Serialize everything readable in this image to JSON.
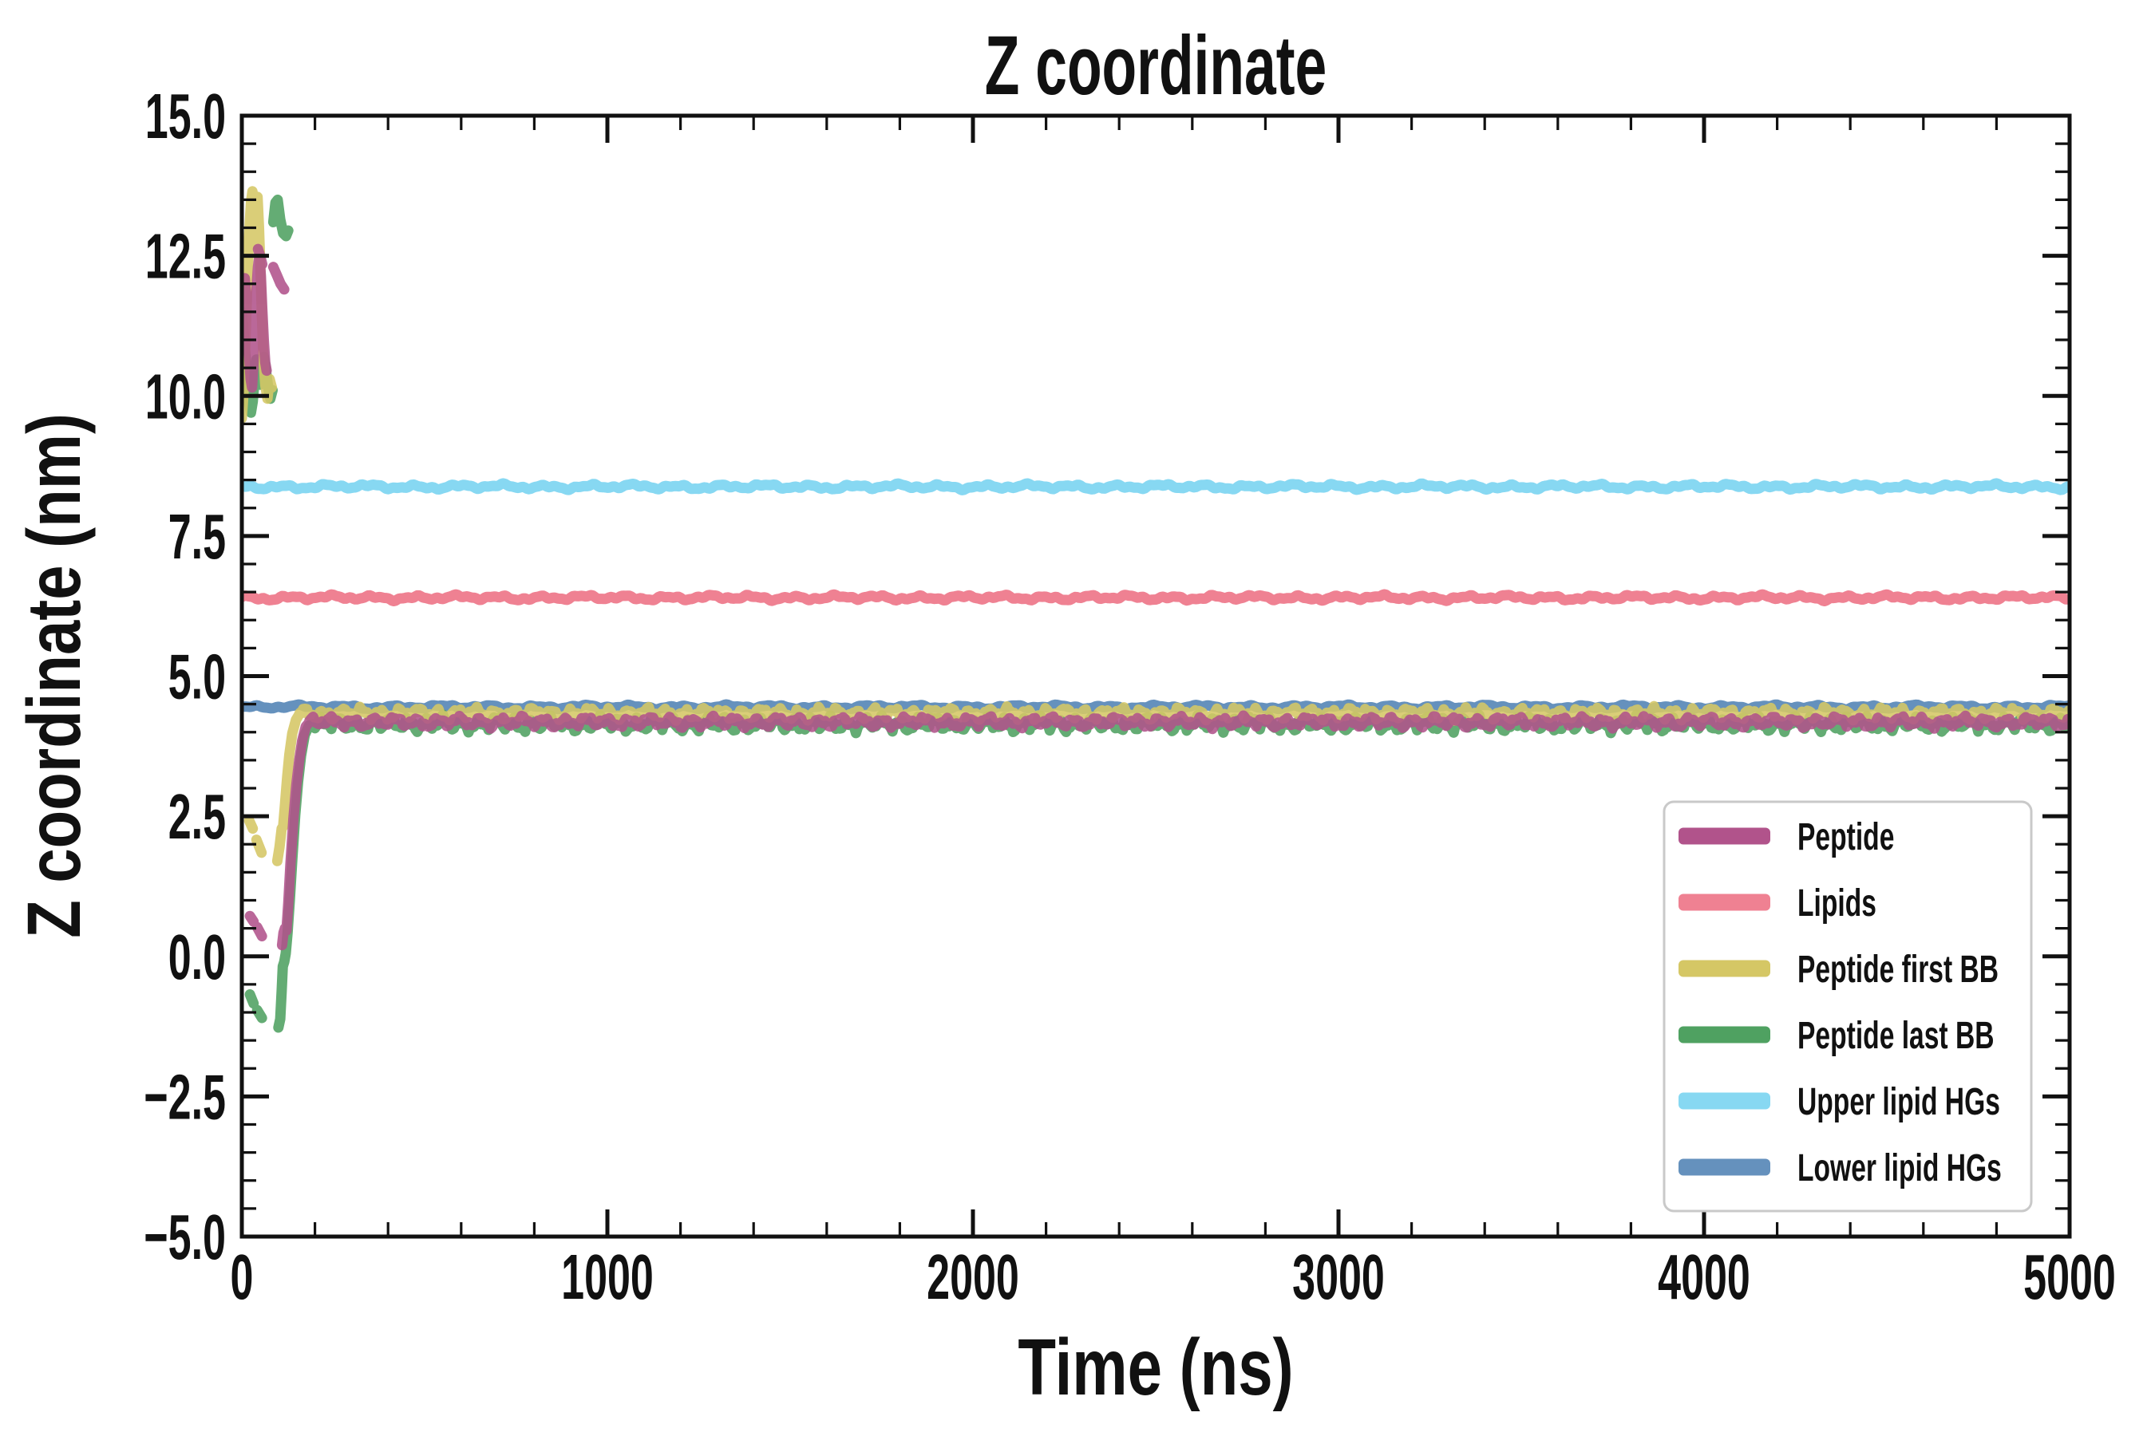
{
  "figure": {
    "background": "#ffffff"
  },
  "chart_data": {
    "type": "line",
    "title": "Z coordinate",
    "xlabel": "Time (ns)",
    "ylabel": "Z coordinate (nm)",
    "xlim": [
      0,
      5000
    ],
    "ylim": [
      -5.0,
      15.0
    ],
    "grid": false,
    "background": "#ffffff",
    "axis_color": "#111111",
    "x_major_ticks": [
      0,
      1000,
      2000,
      3000,
      4000,
      5000
    ],
    "x_minor_step": 200,
    "y_major_ticks": [
      -5.0,
      -2.5,
      0.0,
      2.5,
      5.0,
      7.5,
      10.0,
      12.5,
      15.0
    ],
    "y_minor_step": 0.5,
    "legend": {
      "position": "lower right",
      "border_color": "#c9c9c9",
      "background": "#ffffff",
      "labels": [
        "Peptide",
        "Lipids",
        "Peptide first BB",
        "Peptide last BB",
        "Upper lipid HGs",
        "Lower lipid HGs"
      ]
    },
    "draw_order": [
      4,
      1,
      5,
      3,
      2,
      0
    ],
    "series": [
      {
        "name": "Peptide",
        "color": "#b1538b",
        "alpha": 0.88,
        "baseline": 4.18,
        "noise_amp": 0.1,
        "wiggle": 58,
        "settle_start": 185,
        "pre_segments": [
          [
            [
              0,
              11.15
            ],
            [
              4,
              11.7
            ],
            [
              8,
              12.1
            ],
            [
              12,
              11.8
            ],
            [
              16,
              11.2
            ],
            [
              20,
              10.7
            ],
            [
              24,
              10.3
            ],
            [
              28,
              10.15
            ],
            [
              32,
              10.6
            ],
            [
              36,
              11.3
            ],
            [
              40,
              11.9
            ],
            [
              44,
              12.3
            ],
            [
              48,
              12.5
            ],
            [
              52,
              12.15
            ],
            [
              56,
              11.55
            ],
            [
              60,
              11.0
            ],
            [
              64,
              10.6
            ],
            [
              68,
              10.45
            ]
          ],
          [
            [
              44,
              12.62
            ],
            [
              50,
              12.5
            ],
            [
              56,
              12.35
            ]
          ],
          [
            [
              86,
              12.3
            ],
            [
              96,
              12.15
            ],
            [
              106,
              12.0
            ],
            [
              116,
              11.9
            ]
          ],
          [
            [
              22,
              0.72
            ],
            [
              32,
              0.62
            ]
          ],
          [
            [
              42,
              0.52
            ],
            [
              55,
              0.36
            ]
          ],
          [
            [
              110,
              0.2
            ],
            [
              114,
              0.42
            ],
            [
              118,
              0.5
            ],
            [
              122,
              0.46
            ],
            [
              127,
              0.95
            ],
            [
              133,
              1.65
            ],
            [
              141,
              2.45
            ],
            [
              149,
              3.05
            ],
            [
              157,
              3.5
            ],
            [
              165,
              3.85
            ],
            [
              175,
              4.1
            ],
            [
              188,
              4.2
            ]
          ]
        ]
      },
      {
        "name": "Lipids",
        "color": "#ef8192",
        "alpha": 1.0,
        "baseline": 6.4,
        "noise_amp": 0.05,
        "wiggle": 115,
        "settle_start": 0,
        "pre_segments": []
      },
      {
        "name": "Peptide first BB",
        "color": "#d5c765",
        "alpha": 0.88,
        "baseline": 4.33,
        "noise_amp": 0.11,
        "wiggle": 52,
        "settle_start": 158,
        "pre_segments": [
          [
            [
              0,
              9.6
            ],
            [
              5,
              10.1
            ],
            [
              10,
              11.0
            ],
            [
              15,
              12.0
            ],
            [
              20,
              12.9
            ],
            [
              25,
              13.45
            ],
            [
              29,
              13.65
            ],
            [
              33,
              13.35
            ],
            [
              36,
              12.7
            ],
            [
              39,
              13.1
            ],
            [
              43,
              13.55
            ],
            [
              47,
              13.0
            ],
            [
              51,
              12.2
            ],
            [
              55,
              11.4
            ],
            [
              59,
              10.7
            ],
            [
              64,
              10.2
            ],
            [
              70,
              9.95
            ],
            [
              76,
              10.3
            ],
            [
              82,
              10.15
            ]
          ],
          [
            [
              20,
              2.42
            ],
            [
              30,
              2.28
            ]
          ],
          [
            [
              40,
              2.08
            ],
            [
              54,
              1.85
            ]
          ],
          [
            [
              97,
              1.7
            ],
            [
              103,
              1.95
            ],
            [
              109,
              2.28
            ],
            [
              113,
              2.32
            ],
            [
              118,
              2.7
            ],
            [
              124,
              3.2
            ],
            [
              130,
              3.6
            ],
            [
              138,
              3.98
            ],
            [
              148,
              4.22
            ],
            [
              160,
              4.35
            ]
          ]
        ]
      },
      {
        "name": "Peptide last BB",
        "color": "#4fa161",
        "alpha": 0.88,
        "baseline": 4.15,
        "noise_amp": 0.14,
        "wiggle": 48,
        "settle_start": 195,
        "pre_segments": [
          [
            [
              0,
              11.5
            ],
            [
              5,
              11.15
            ],
            [
              10,
              10.7
            ],
            [
              15,
              10.25
            ],
            [
              20,
              9.85
            ],
            [
              25,
              9.7
            ],
            [
              30,
              9.9
            ],
            [
              35,
              10.3
            ],
            [
              40,
              10.65
            ],
            [
              45,
              10.5
            ],
            [
              50,
              10.2
            ],
            [
              55,
              10.45
            ],
            [
              60,
              10.7
            ],
            [
              66,
              10.45
            ],
            [
              72,
              10.15
            ],
            [
              78,
              9.95
            ],
            [
              84,
              10.1
            ]
          ],
          [
            [
              86,
              13.1
            ],
            [
              92,
              13.45
            ],
            [
              98,
              13.5
            ],
            [
              105,
              13.15
            ],
            [
              113,
              12.9
            ],
            [
              121,
              12.85
            ],
            [
              127,
              12.95
            ]
          ],
          [
            [
              22,
              -0.68
            ],
            [
              32,
              -0.84
            ]
          ],
          [
            [
              42,
              -0.96
            ],
            [
              55,
              -1.1
            ]
          ],
          [
            [
              100,
              -1.27
            ],
            [
              105,
              -1.12
            ],
            [
              109,
              -0.62
            ],
            [
              112,
              -0.18
            ],
            [
              116,
              -0.1
            ],
            [
              120,
              0.05
            ],
            [
              125,
              0.42
            ],
            [
              131,
              0.98
            ],
            [
              138,
              1.72
            ],
            [
              146,
              2.52
            ],
            [
              154,
              3.12
            ],
            [
              162,
              3.58
            ],
            [
              172,
              3.95
            ],
            [
              184,
              4.12
            ],
            [
              198,
              4.15
            ]
          ]
        ]
      },
      {
        "name": "Upper lipid HGs",
        "color": "#87d8f2",
        "alpha": 1.0,
        "baseline": 8.38,
        "noise_amp": 0.05,
        "wiggle": 120,
        "settle_start": 0,
        "pre_segments": []
      },
      {
        "name": "Lower lipid HGs",
        "color": "#6591bd",
        "alpha": 1.0,
        "baseline": 4.45,
        "noise_amp": 0.038,
        "wiggle": 130,
        "settle_start": 0,
        "pre_segments": []
      }
    ]
  }
}
